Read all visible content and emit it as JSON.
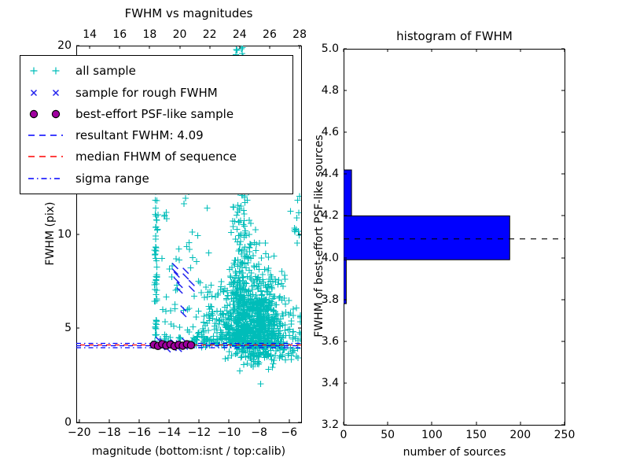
{
  "chart_data": [
    {
      "type": "scatter",
      "title": "FWHM vs magnitudes",
      "xlabel": "magnitude (bottom:isnt / top:calib)",
      "ylabel": "FWHM (pix)",
      "xlim": [
        -20.2,
        -5.2
      ],
      "ylim": [
        0,
        20
      ],
      "x_ticks_bottom": [
        -20,
        -18,
        -16,
        -14,
        -12,
        -10,
        -8,
        -6
      ],
      "x_ticks_top": [
        14,
        16,
        18,
        20,
        22,
        24,
        26,
        28
      ],
      "top_axis_offset": 33.3,
      "y_ticks": [
        0,
        5,
        10,
        15,
        20
      ],
      "grid": false,
      "legend_position": "upper left",
      "colors": {
        "all": "#00bdb9",
        "rough": "#2222ee",
        "psf": "#a000a0",
        "psf_edge": "#000000",
        "resultant": "#0000ff",
        "median": "#ff0000",
        "sigma": "#0000ff"
      },
      "series": {
        "all_sample": {
          "label": "all sample",
          "marker": "+",
          "seed": 11,
          "clusters": [
            {
              "n": 55,
              "x": {
                "dist": "normal",
                "mu": -14.87,
                "sd": 0.05,
                "min": -15.05,
                "max": -14.7
              },
              "y": {
                "dist": "uniform",
                "min": 4.25,
                "max": 12.3
              }
            },
            {
              "n": 85,
              "x": {
                "dist": "uniform",
                "min": -14.65,
                "max": -11.2
              },
              "y": {
                "dist": "pow",
                "min": 4.35,
                "max": 12.8,
                "p": 2.0
              }
            },
            {
              "n": 210,
              "x": {
                "dist": "normal",
                "mu": -9.25,
                "sd": 0.3,
                "min": -10.3,
                "max": -8.2
              },
              "y": {
                "dist": "pow",
                "min": 4.3,
                "max": 19.9,
                "p": 2.0
              }
            },
            {
              "type": "triangle",
              "n": 620,
              "fbase": 4.15,
              "fsd": 2.3,
              "fmax": 11.8,
              "mu": -8.6,
              "sd0": 0.35,
              "k": 0.17,
              "xmin": -11.7,
              "xmax": -5.25
            },
            {
              "n": 340,
              "x": {
                "dist": "normal",
                "mu": -8.35,
                "sd": 0.9,
                "min": -10.8,
                "max": -5.3
              },
              "y": {
                "dist": "pow",
                "min": 4.05,
                "max": 6.5,
                "p": 1.8
              }
            },
            {
              "n": 150,
              "x": {
                "dist": "normal",
                "mu": -7.7,
                "sd": 1.1,
                "min": -10.6,
                "max": -5.4
              },
              "y": {
                "dist": "normal",
                "mu": 3.7,
                "sd": 0.35,
                "min": 2.45,
                "max": 4.2
              }
            },
            {
              "n": 60,
              "x": {
                "dist": "normal",
                "mu": -9.6,
                "sd": 1.5,
                "min": -12.8,
                "max": -6.5
              },
              "y": {
                "dist": "uniform",
                "min": 12.3,
                "max": 19.95
              }
            },
            {
              "n": 25,
              "x": {
                "dist": "uniform",
                "min": -12.4,
                "max": -10.5
              },
              "y": {
                "dist": "normal",
                "mu": 4.3,
                "sd": 0.18,
                "min": 3.9,
                "max": 4.8
              }
            },
            {
              "n": 12,
              "x": {
                "dist": "uniform",
                "min": -6.0,
                "max": -5.3
              },
              "y": {
                "dist": "uniform",
                "min": 9.5,
                "max": 12.2
              }
            }
          ],
          "outliers": [
            [
              -7.9,
              2.05
            ]
          ]
        },
        "rough_fwhm": {
          "label": "sample for rough FWHM",
          "marker": "x",
          "points": [
            [
              -13.6,
              8.0
            ],
            [
              -12.9,
              7.75
            ],
            [
              -12.5,
              7.1
            ],
            [
              -13.3,
              7.0
            ],
            [
              -13.5,
              7.55
            ],
            [
              -13.05,
              5.75
            ],
            [
              -14.45,
              4.0
            ],
            [
              -14.1,
              3.88
            ],
            [
              -13.7,
              3.95
            ],
            [
              -13.35,
              3.9
            ],
            [
              -12.95,
              4.02
            ],
            [
              -14.7,
              4.08
            ]
          ]
        },
        "psf_like": {
          "label": "best-effort PSF-like sample",
          "marker": "o",
          "points": [
            [
              -15.02,
              4.12
            ],
            [
              -14.75,
              4.06
            ],
            [
              -14.47,
              4.16
            ],
            [
              -14.2,
              4.08
            ],
            [
              -13.92,
              4.14
            ],
            [
              -13.65,
              4.05
            ],
            [
              -13.37,
              4.12
            ],
            [
              -13.1,
              4.07
            ],
            [
              -12.82,
              4.15
            ],
            [
              -12.55,
              4.1
            ]
          ]
        }
      },
      "lines": {
        "resultant": {
          "label": "resultant FWHM: 4.09",
          "value": 4.09,
          "style": "dashed"
        },
        "median": {
          "label": "median FHWM of sequence",
          "value": 4.1,
          "style": "dashed"
        },
        "sigma": {
          "label": "sigma range",
          "values": [
            3.975,
            4.205
          ],
          "style": "dashdot"
        }
      },
      "legend_items": [
        {
          "key": "all",
          "type": "plus2",
          "label": "all sample"
        },
        {
          "key": "rough",
          "type": "x2",
          "label": "sample for rough FWHM"
        },
        {
          "key": "psf",
          "type": "dot2",
          "label": "best-effort PSF-like sample"
        },
        {
          "key": "resultant",
          "type": "dash",
          "label": "resultant FWHM: 4.09"
        },
        {
          "key": "median",
          "type": "dash",
          "label": "median FHWM of sequence"
        },
        {
          "key": "sigma",
          "type": "dashdot",
          "label": "sigma range"
        }
      ]
    },
    {
      "type": "bar",
      "orientation": "horizontal",
      "title": "histogram of FWHM",
      "xlabel": "number of sources",
      "ylabel": "FWHM of best-effort PSF-like sources",
      "xlim": [
        0,
        250
      ],
      "ylim": [
        3.2,
        5.0
      ],
      "x_ticks": [
        0,
        50,
        100,
        150,
        200,
        250
      ],
      "y_ticks": [
        3.2,
        3.4,
        3.6,
        3.8,
        4.0,
        4.2,
        4.4,
        4.6,
        4.8,
        5.0
      ],
      "grid": false,
      "bin_edges": [
        3.78,
        3.99,
        4.2,
        4.42
      ],
      "counts": [
        3,
        188,
        9
      ],
      "bar_color": "#0000ff",
      "bar_edge": "#000000",
      "median_line": {
        "value": 4.09,
        "color": "#000000",
        "style": "dashed"
      }
    }
  ]
}
